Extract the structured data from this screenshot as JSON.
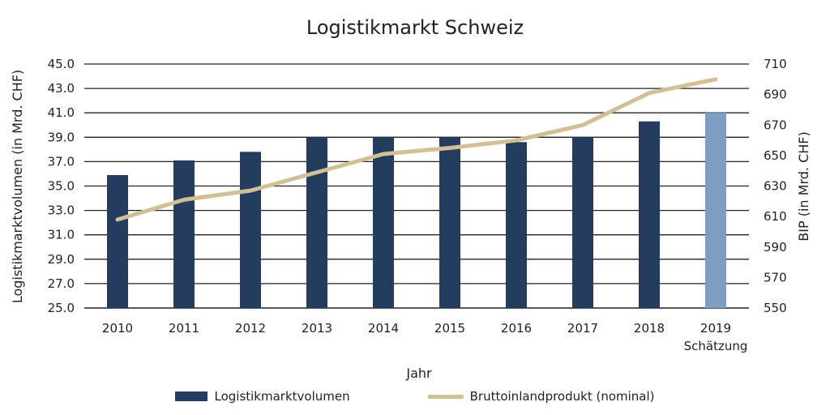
{
  "chart_data": {
    "type": "bar",
    "title": "Logistikmarkt Schweiz",
    "xlabel": "Jahr",
    "ylabel_left": "Logistikmarktvolumen (in Mrd. CHF)",
    "ylabel_right": "BIP (in Mrd. CHF)",
    "categories": [
      "2010",
      "2011",
      "2012",
      "2013",
      "2014",
      "2015",
      "2016",
      "2017",
      "2018",
      "2019"
    ],
    "category_sublabels": [
      "",
      "",
      "",
      "",
      "",
      "",
      "",
      "",
      "",
      "Schätzung"
    ],
    "y_left": {
      "min": 25,
      "max": 45,
      "step": 2,
      "ticks": [
        "25.0",
        "27.0",
        "29.0",
        "31.0",
        "33.0",
        "35.0",
        "37.0",
        "39.0",
        "41.0",
        "43.0",
        "45.0"
      ]
    },
    "y_right": {
      "min": 550,
      "max": 710,
      "step": 20,
      "ticks": [
        "550",
        "570",
        "590",
        "610",
        "630",
        "650",
        "670",
        "690",
        "710"
      ]
    },
    "grid": true,
    "legend_position": "bottom",
    "series": [
      {
        "name": "Logistikmarktvolumen",
        "type": "bar",
        "axis": "left",
        "values": [
          35.9,
          37.1,
          37.8,
          39.0,
          39.0,
          39.0,
          38.6,
          39.0,
          40.3,
          41.0
        ],
        "color": "#243d5e",
        "highlight_color": "#7c9fc3",
        "highlight_index": 9
      },
      {
        "name": "Bruttoinlandprodukt (nominal)",
        "type": "line",
        "axis": "right",
        "values": [
          608,
          621,
          627,
          639,
          651,
          655,
          660,
          670,
          691,
          700
        ],
        "color": "#d2bf95"
      }
    ]
  }
}
